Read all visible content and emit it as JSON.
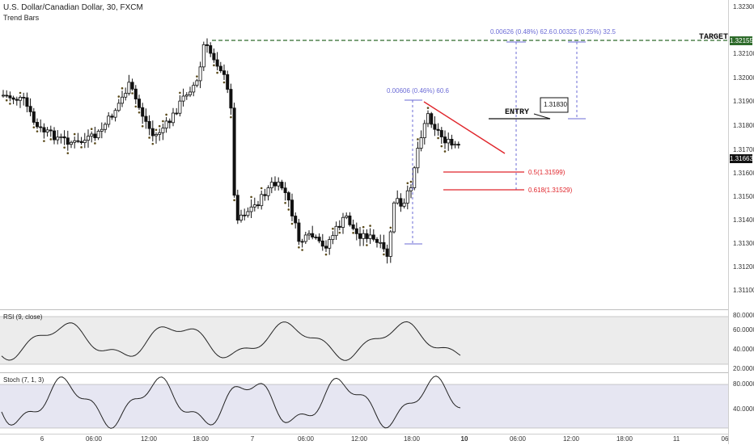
{
  "header": {
    "symbol": "U.S. Dollar/Canadian Dollar, 30, FXCM",
    "indicator": "Trend Bars"
  },
  "price_axis": {
    "labels": [
      "1.32300",
      "1.32100",
      "1.32000",
      "1.31900",
      "1.31800",
      "1.31700",
      "1.31600",
      "1.31500",
      "1.31400",
      "1.31300",
      "1.31200",
      "1.31100"
    ],
    "target_badge": "1.32155",
    "current_badge": "1.31663"
  },
  "rsi": {
    "title": "RSI (9, close)",
    "labels": [
      "80.0000",
      "60.0000",
      "40.0000",
      "20.0000"
    ]
  },
  "stoch": {
    "title": "Stoch (7, 1, 3)",
    "labels": [
      "80.0000",
      "40.0000"
    ]
  },
  "time_axis": [
    "6",
    "06:00",
    "12:00",
    "18:00",
    "7",
    "06:00",
    "12:00",
    "18:00",
    "10",
    "06:00",
    "12:00",
    "18:00",
    "11",
    "06"
  ],
  "annotations": {
    "target_label": "TARGET",
    "entry_label": "ENTRY",
    "entry_price": "1.31830",
    "measure1": "0.00606 (0.46%) 60.6",
    "measure2": "0.00626 (0.48%) 62.6",
    "measure3": "0.00325 (0.25%) 32.5",
    "fib1": "0.5(1.31599)",
    "fib2": "0.618(1.31529)"
  },
  "colors": {
    "target_line": "#2e6b2b",
    "fib_line": "#e0252b",
    "measure": "#6b6bd6",
    "rsi_bg": "#ececec",
    "stoch_bg": "#e6e6f2"
  }
}
